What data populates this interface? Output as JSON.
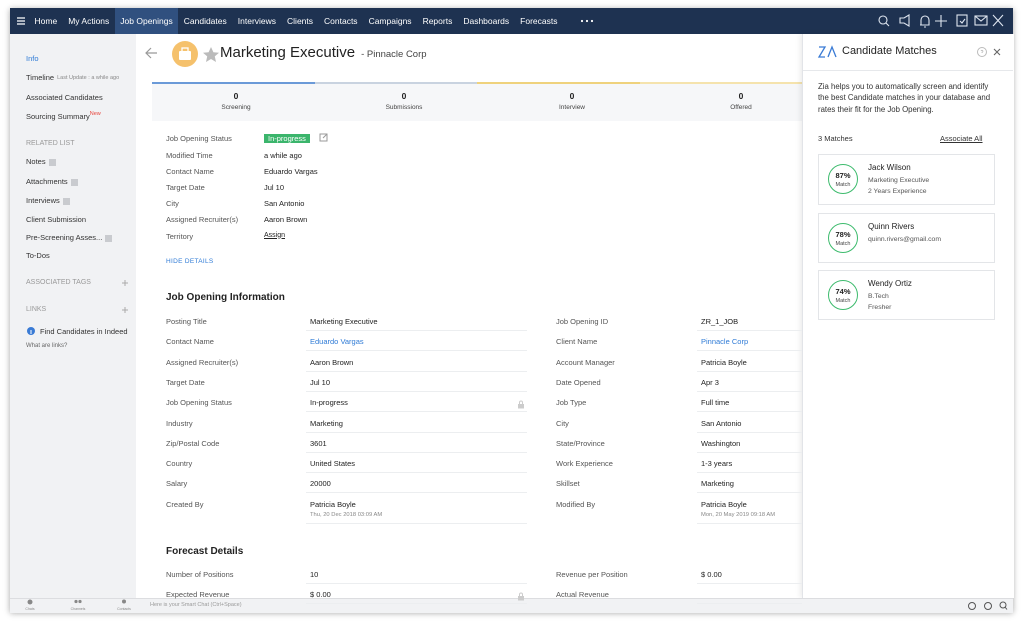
{
  "nav": {
    "items": [
      "Home",
      "My Actions",
      "Job Openings",
      "Candidates",
      "Interviews",
      "Clients",
      "Contacts",
      "Campaigns",
      "Reports",
      "Dashboards",
      "Forecasts"
    ]
  },
  "sidebar": {
    "items": [
      {
        "label": "Info"
      },
      {
        "label": "Timeline",
        "note": "Last Update : a while ago"
      },
      {
        "label": "Associated Candidates"
      },
      {
        "label": "Sourcing Summary",
        "badge": "New"
      }
    ],
    "related_title": "RELATED LIST",
    "related": [
      "Notes",
      "Attachments",
      "Interviews",
      "Client Submission",
      "Pre-Screening Asses...",
      "To-Dos"
    ],
    "tags_title": "ASSOCIATED TAGS",
    "links_title": "LINKS",
    "link": "Find Candidates in Indeed",
    "links_help": "What are links?"
  },
  "header": {
    "title": "Marketing Executive",
    "subtitle": "- Pinnacle Corp"
  },
  "stats": [
    {
      "value": "0",
      "label": "Screening"
    },
    {
      "value": "0",
      "label": "Submissions"
    },
    {
      "value": "0",
      "label": "Interview"
    },
    {
      "value": "0",
      "label": "Offered"
    }
  ],
  "summary": {
    "rows": [
      {
        "label": "Job Opening Status",
        "value": "In-progress"
      },
      {
        "label": "Modified Time",
        "value": "a while ago"
      },
      {
        "label": "Contact Name",
        "value": "Eduardo Vargas"
      },
      {
        "label": "Target Date",
        "value": "Jul 10"
      },
      {
        "label": "City",
        "value": "San Antonio"
      },
      {
        "label": "Assigned Recruiter(s)",
        "value": "Aaron Brown"
      },
      {
        "label": "Territory",
        "value": "Assign"
      }
    ],
    "toggle": "HIDE DETAILS"
  },
  "info": {
    "title": "Job Opening Information",
    "left": [
      {
        "label": "Posting Title",
        "value": "Marketing Executive"
      },
      {
        "label": "Contact Name",
        "value": "Eduardo Vargas",
        "link": true
      },
      {
        "label": "Assigned Recruiter(s)",
        "value": "Aaron Brown"
      },
      {
        "label": "Target Date",
        "value": "Jul 10"
      },
      {
        "label": "Job Opening Status",
        "value": "In-progress"
      },
      {
        "label": "Industry",
        "value": "Marketing"
      },
      {
        "label": "Zip/Postal Code",
        "value": "3601"
      },
      {
        "label": "Country",
        "value": "United States"
      },
      {
        "label": "Salary",
        "value": "20000"
      },
      {
        "label": "Created By",
        "value": "Patricia Boyle",
        "sub": "Thu, 20 Dec 2018 03:09 AM"
      }
    ],
    "right": [
      {
        "label": "Job Opening ID",
        "value": "ZR_1_JOB"
      },
      {
        "label": "Client Name",
        "value": "Pinnacle Corp",
        "link": true
      },
      {
        "label": "Account Manager",
        "value": "Patricia Boyle"
      },
      {
        "label": "Date Opened",
        "value": "Apr 3"
      },
      {
        "label": "Job Type",
        "value": "Full time"
      },
      {
        "label": "City",
        "value": "San Antonio"
      },
      {
        "label": "State/Province",
        "value": "Washington"
      },
      {
        "label": "Work Experience",
        "value": "1-3 years"
      },
      {
        "label": "Skillset",
        "value": "Marketing"
      },
      {
        "label": "Modified By",
        "value": "Patricia Boyle",
        "sub": "Mon, 20 May 2019 09:18 AM"
      }
    ]
  },
  "forecast": {
    "title": "Forecast Details",
    "left": [
      {
        "label": "Number of Positions",
        "value": "10"
      },
      {
        "label": "Expected Revenue",
        "value": "$ 0.00"
      }
    ],
    "right": [
      {
        "label": "Revenue per Position",
        "value": "$ 0.00"
      },
      {
        "label": "Actual Revenue"
      }
    ]
  },
  "panel": {
    "title": "Candidate Matches",
    "description": "Zia helps you to automatically screen and identify the best Candidate matches in your database and rates their fit for the Job Opening.",
    "count": "3 Matches",
    "action": "Associate All",
    "matches": [
      {
        "score": "87%",
        "score_label": "Match",
        "name": "Jack Wilson",
        "lines": [
          "Marketing Executive",
          "2 Years Experience"
        ]
      },
      {
        "score": "78%",
        "score_label": "Match",
        "name": "Quinn Rivers",
        "lines": [
          "quinn.rivers@gmail.com"
        ]
      },
      {
        "score": "74%",
        "score_label": "Match",
        "name": "Wendy Ortiz",
        "lines": [
          "B.Tech",
          "Fresher"
        ]
      }
    ]
  },
  "footer": {
    "tabs": [
      "Chats",
      "Channels",
      "Contacts"
    ],
    "chat_placeholder": "Here is your Smart Chat (Ctrl+Space)"
  }
}
